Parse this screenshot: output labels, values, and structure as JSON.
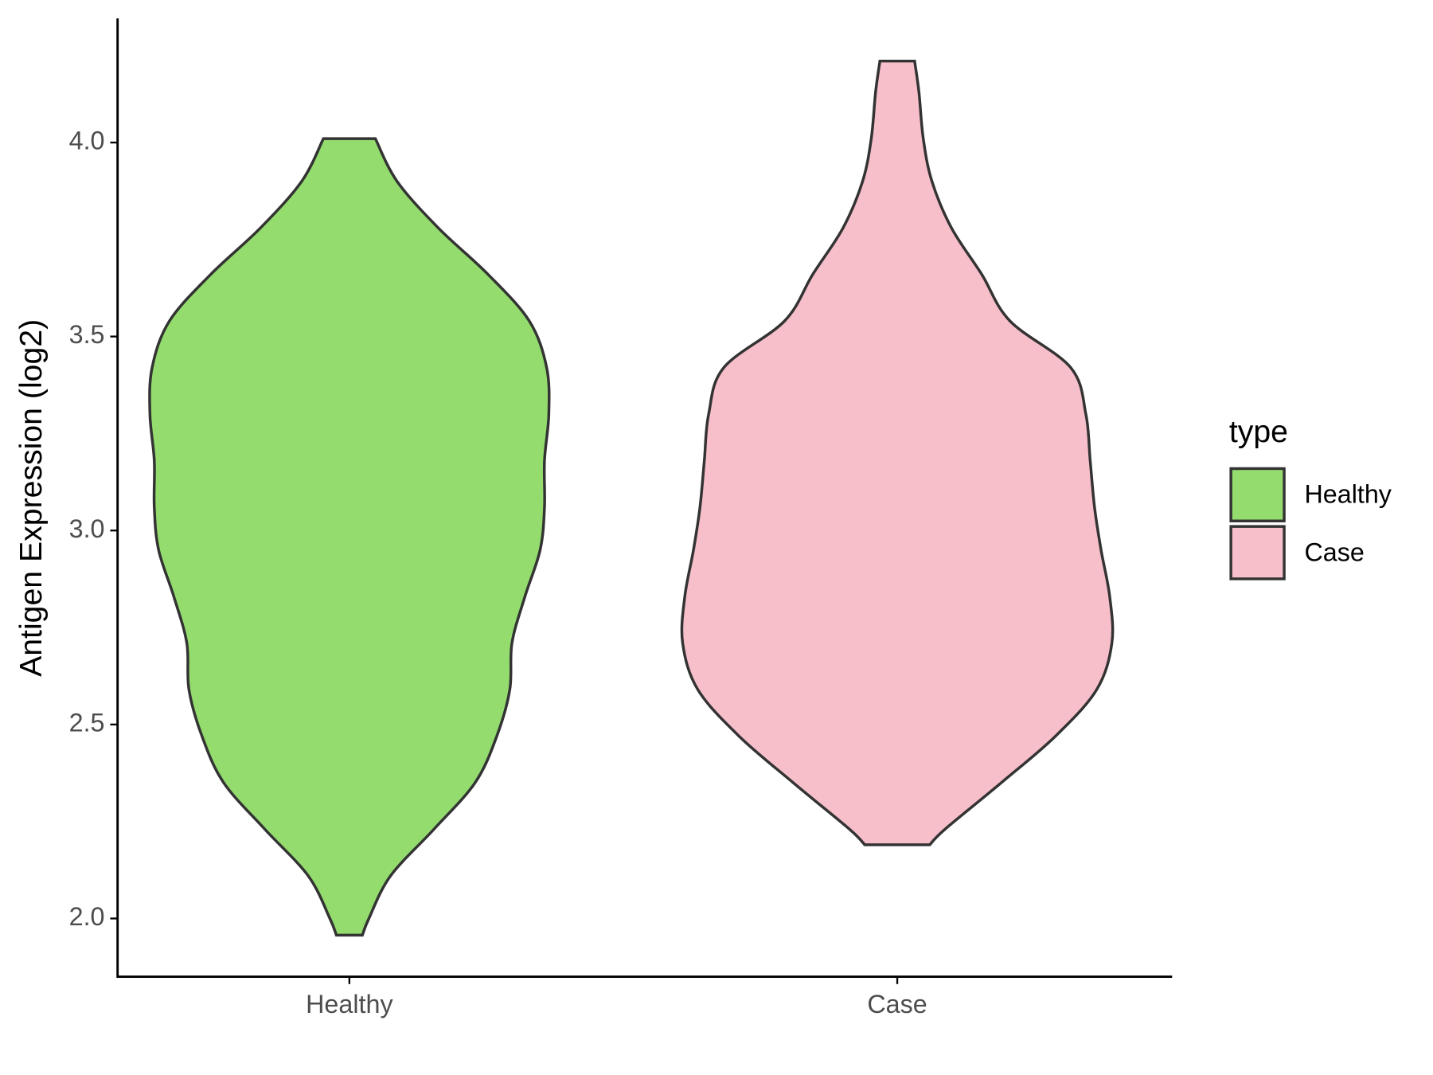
{
  "chart_data": {
    "type": "violin",
    "ylabel": "Antigen Expression (log2)",
    "categories": [
      "Healthy",
      "Case"
    ],
    "series": [
      {
        "name": "Healthy",
        "color": "#93dc6d",
        "y": [
          1.957,
          2.0,
          2.11,
          2.23,
          2.35,
          2.47,
          2.59,
          2.71,
          2.83,
          2.95,
          3.06,
          3.18,
          3.3,
          3.42,
          3.54,
          3.66,
          3.78,
          3.9,
          4.01
        ],
        "width": [
          0.06,
          0.09,
          0.19,
          0.39,
          0.58,
          0.68,
          0.74,
          0.75,
          0.81,
          0.88,
          0.9,
          0.9,
          0.92,
          0.91,
          0.83,
          0.64,
          0.41,
          0.22,
          0.12
        ]
      },
      {
        "name": "Case",
        "color": "#f7bfca",
        "y": [
          2.19,
          2.23,
          2.35,
          2.47,
          2.59,
          2.71,
          2.83,
          2.95,
          3.06,
          3.18,
          3.3,
          3.42,
          3.54,
          3.66,
          3.78,
          3.9,
          4.01,
          4.13,
          4.21
        ],
        "width": [
          0.15,
          0.22,
          0.48,
          0.73,
          0.92,
          0.99,
          0.98,
          0.94,
          0.91,
          0.89,
          0.87,
          0.8,
          0.52,
          0.39,
          0.25,
          0.16,
          0.12,
          0.1,
          0.08
        ]
      }
    ],
    "ylim": [
      1.85,
      4.32
    ],
    "yticks": [
      {
        "value": 2,
        "label": "2.0"
      },
      {
        "value": 2.5,
        "label": "2.5"
      },
      {
        "value": 3,
        "label": "3.0"
      },
      {
        "value": 3.5,
        "label": "3.5"
      },
      {
        "value": 4,
        "label": "4.0"
      }
    ],
    "legend_title": "type",
    "legend": "right"
  }
}
